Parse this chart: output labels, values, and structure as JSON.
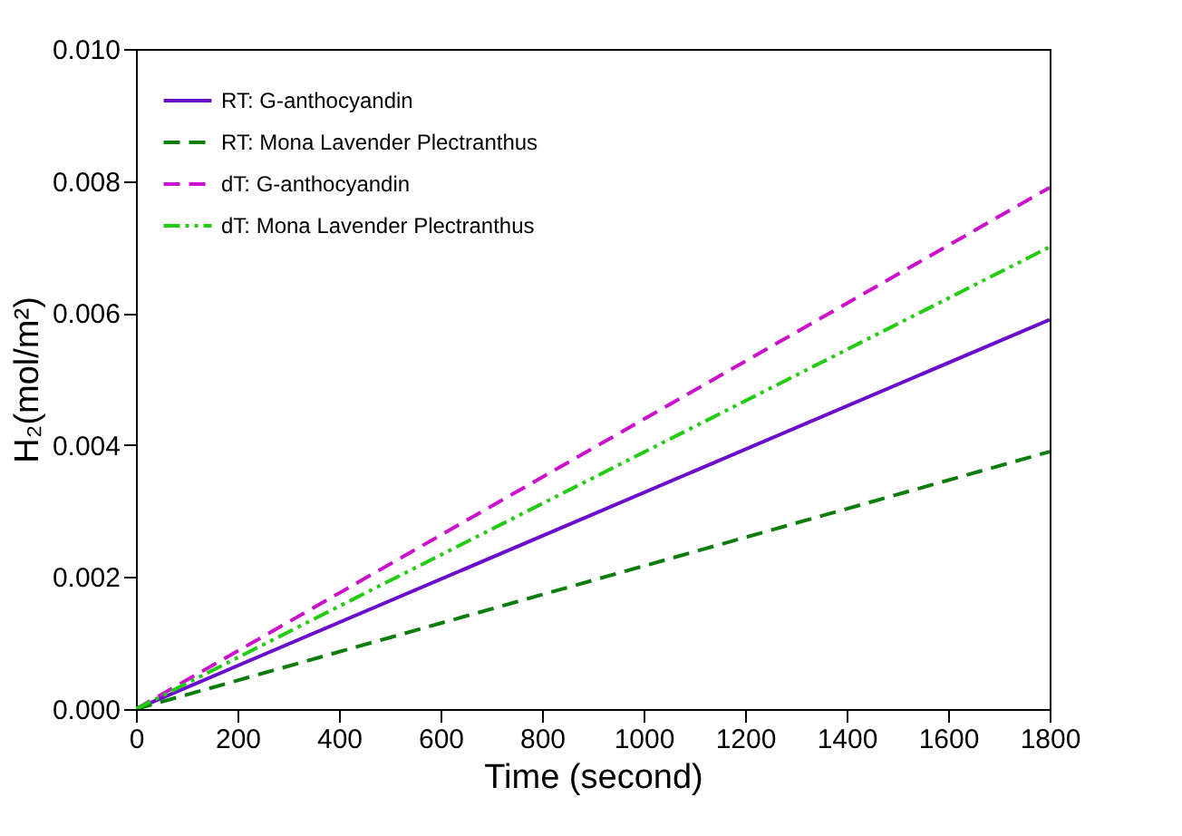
{
  "chart_data": {
    "type": "line",
    "xlabel": "Time (second)",
    "ylabel": "H₂(mol/m²)",
    "x": [
      0,
      1800
    ],
    "series": [
      {
        "name": "RT: G-anthocyandin",
        "color": "#6a0dcc",
        "line_style": "solid",
        "values": [
          0,
          0.0059
        ]
      },
      {
        "name": "RT: Mona Lavender Plectranthus",
        "color": "#0a7d0a",
        "line_style": "dashed",
        "values": [
          0,
          0.0039
        ]
      },
      {
        "name": "dT: G-anthocyandin",
        "color": "#cc11cc",
        "line_style": "dashed",
        "values": [
          0,
          0.0079
        ]
      },
      {
        "name": "dT: Mona Lavender Plectranthus",
        "color": "#22cc11",
        "line_style": "dashdotdot",
        "values": [
          0,
          0.007
        ]
      }
    ],
    "xlim": [
      0,
      1800
    ],
    "xticks": [
      0,
      200,
      400,
      600,
      800,
      1000,
      1200,
      1400,
      1600,
      1800
    ],
    "ylim": [
      0,
      0.01
    ],
    "yticks": [
      {
        "value": 0,
        "label": "0.000"
      },
      {
        "value": 0.002,
        "label": "0.002"
      },
      {
        "value": 0.004,
        "label": "0.004"
      },
      {
        "value": 0.006,
        "label": "0.006"
      },
      {
        "value": 0.008,
        "label": "0.008"
      },
      {
        "value": 0.01,
        "label": "0.010"
      }
    ],
    "grid": false,
    "legend": "top left",
    "marker": "none"
  }
}
